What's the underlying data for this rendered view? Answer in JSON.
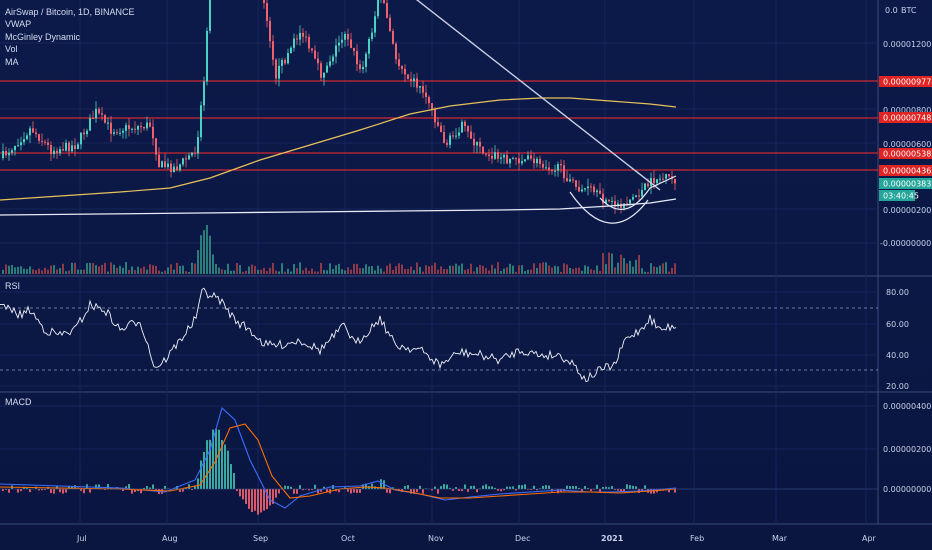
{
  "header": {
    "symbol_line": "AirSwap / Bitcoin, 1D, BINANCE",
    "indicators": [
      "VWAP",
      "McGinley Dynamic",
      "Vol",
      "MA"
    ],
    "currency_label": "BTC"
  },
  "colors": {
    "background": "#0b1740",
    "candle_up": "#4bd1c0",
    "candle_down": "#f0616e",
    "ma_line": "#e8c15a",
    "vwap_line": "#ffffff",
    "resistance_line": "#ff2a2a",
    "price_tag_last": "#26a69a",
    "rsi_line": "#ffffff",
    "macd_line": "#2962ff",
    "signal_line": "#ff6d00"
  },
  "price_pane": {
    "axis_ticks": [
      "0.00000200",
      "0.00000400",
      "0.00000600",
      "0.00000800",
      "0.00001200",
      "-0.00000000"
    ],
    "top_tick_partial": "0.0",
    "resistance_levels": [
      "0.00000977",
      "0.00000748",
      "0.00000538",
      "0.00000436"
    ],
    "last_price": "0.00000383",
    "countdown": "03:40:45"
  },
  "rsi_pane": {
    "label": "RSI",
    "axis_ticks": [
      "80.00",
      "60.00",
      "40.00",
      "20.00"
    ],
    "upper_band": 70,
    "lower_band": 30
  },
  "macd_pane": {
    "label": "MACD",
    "axis_ticks": [
      "0.00000400",
      "0.00000200",
      "0.00000000"
    ]
  },
  "time_axis": {
    "labels": [
      "Jul",
      "Aug",
      "Sep",
      "Oct",
      "Nov",
      "Dec",
      "2021",
      "Feb",
      "Mar",
      "Apr"
    ]
  },
  "chart_data": [
    {
      "type": "candlestick",
      "title": "AirSwap / Bitcoin, 1D, BINANCE",
      "x_range": [
        "2020-06-10",
        "2021-01-23"
      ],
      "y_unit": "BTC",
      "approx_close_path": [
        {
          "x": "2020-06-10",
          "y": 4e-06
        },
        {
          "x": "2020-07-01",
          "y": 6.2e-06
        },
        {
          "x": "2020-07-28",
          "y": 4.5e-06
        },
        {
          "x": "2020-08-09",
          "y": 6.6e-06
        },
        {
          "x": "2020-08-12",
          "y": 1.4e-05
        },
        {
          "x": "2020-09-01",
          "y": 1.15e-05
        },
        {
          "x": "2020-10-01",
          "y": 1.2e-05
        },
        {
          "x": "2020-10-15",
          "y": 1e-05
        },
        {
          "x": "2020-11-01",
          "y": 7e-06
        },
        {
          "x": "2020-11-15",
          "y": 5.3e-06
        },
        {
          "x": "2020-12-01",
          "y": 4.8e-06
        },
        {
          "x": "2020-12-20",
          "y": 3.2e-06
        },
        {
          "x": "2021-01-05",
          "y": 2.9e-06
        },
        {
          "x": "2021-01-23",
          "y": 3.83e-06
        }
      ]
    },
    {
      "type": "line",
      "title": "RSI",
      "y_range": [
        20,
        90
      ],
      "approx_values": [
        {
          "x": "2020-06-10",
          "y": 66
        },
        {
          "x": "2020-07-01",
          "y": 70
        },
        {
          "x": "2020-07-28",
          "y": 28
        },
        {
          "x": "2020-08-12",
          "y": 84
        },
        {
          "x": "2020-09-01",
          "y": 55
        },
        {
          "x": "2020-10-13",
          "y": 63
        },
        {
          "x": "2020-11-01",
          "y": 30
        },
        {
          "x": "2020-12-01",
          "y": 45
        },
        {
          "x": "2021-01-02",
          "y": 22
        },
        {
          "x": "2021-01-18",
          "y": 64
        },
        {
          "x": "2021-01-23",
          "y": 58
        }
      ]
    },
    {
      "type": "line",
      "title": "MACD",
      "approx_values": [
        {
          "x": "2020-06-10",
          "y": 1e-07
        },
        {
          "x": "2020-08-01",
          "y": 0.0
        },
        {
          "x": "2020-08-22",
          "y": 3.9e-06
        },
        {
          "x": "2020-09-07",
          "y": -5e-07
        },
        {
          "x": "2020-10-13",
          "y": 3e-07
        },
        {
          "x": "2020-11-10",
          "y": -1.2e-06
        },
        {
          "x": "2021-01-01",
          "y": -3e-07
        },
        {
          "x": "2021-01-23",
          "y": 1e-07
        }
      ]
    }
  ]
}
